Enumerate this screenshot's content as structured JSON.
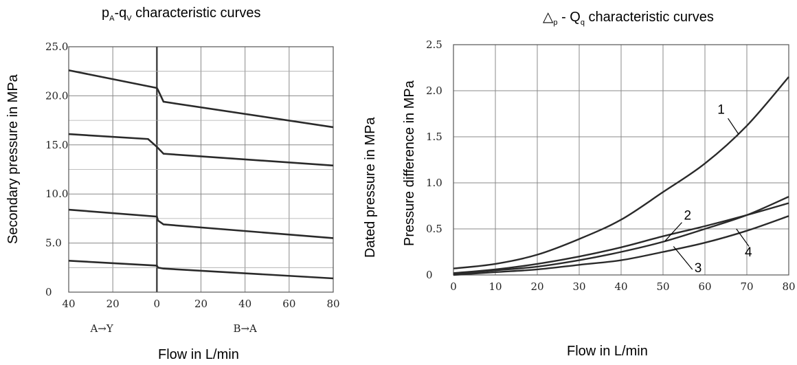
{
  "chart_data": [
    {
      "type": "line",
      "title": "pₐ-qᵥ characteristic curves",
      "title_main": "p",
      "title_sub_a": "A",
      "title_mid": "-q",
      "title_sub_b": "V",
      "title_tail": " characteristic curves",
      "xlabel": "Flow in L/min",
      "ylabel": "Secondary pressure in MPa",
      "x_ticks": [
        "40",
        "20",
        "0",
        "20",
        "40",
        "60",
        "80"
      ],
      "y_ticks": [
        "0",
        "5.0",
        "10.0",
        "15.0",
        "20.0",
        "25.0"
      ],
      "direction_labels": [
        "A→Y",
        "B→A"
      ],
      "xlim": [
        -40,
        80
      ],
      "ylim": [
        0,
        25
      ],
      "grid": true,
      "series": [
        {
          "x": [
            -40,
            0,
            0.5,
            3,
            80
          ],
          "values": [
            22.6,
            20.8,
            20.6,
            19.4,
            16.8
          ]
        },
        {
          "x": [
            -40,
            -4,
            0,
            3,
            80
          ],
          "values": [
            16.1,
            15.6,
            14.8,
            14.1,
            12.9
          ]
        },
        {
          "x": [
            -40,
            0,
            0.5,
            3,
            80
          ],
          "values": [
            8.4,
            7.7,
            7.3,
            6.9,
            5.5
          ]
        },
        {
          "x": [
            -40,
            0,
            0.5,
            3,
            80
          ],
          "values": [
            3.2,
            2.7,
            2.5,
            2.4,
            1.4
          ]
        }
      ]
    },
    {
      "type": "line",
      "title": "△ₚ - Qᵩ characteristic curves",
      "title_main": "△",
      "title_sub_a": "p",
      "title_mid": " - Q",
      "title_sub_b": "q",
      "title_tail": " characteristic curves",
      "xlabel": "Flow in L/min",
      "ylabel": "Pressure difference in MPa",
      "ylabel2": "Dated pressure  in MPa",
      "x_ticks": [
        "0",
        "10",
        "20",
        "30",
        "40",
        "50",
        "60",
        "70",
        "80"
      ],
      "y_ticks": [
        "0",
        "0.5",
        "1.0",
        "1.5",
        "2.0",
        "2.5"
      ],
      "xlim": [
        0,
        80
      ],
      "ylim": [
        0,
        2.5
      ],
      "grid": true,
      "series": [
        {
          "name": "1",
          "x": [
            0,
            10,
            20,
            30,
            40,
            50,
            60,
            70,
            80
          ],
          "values": [
            0.07,
            0.12,
            0.22,
            0.39,
            0.6,
            0.9,
            1.21,
            1.62,
            2.15
          ]
        },
        {
          "name": "2",
          "x": [
            0,
            10,
            20,
            30,
            40,
            50,
            60,
            70,
            80
          ],
          "values": [
            0.02,
            0.06,
            0.12,
            0.2,
            0.3,
            0.42,
            0.53,
            0.65,
            0.78
          ]
        },
        {
          "name": "3",
          "x": [
            0,
            10,
            20,
            30,
            40,
            50,
            60,
            70,
            80
          ],
          "values": [
            0.01,
            0.05,
            0.09,
            0.16,
            0.25,
            0.36,
            0.5,
            0.65,
            0.85
          ]
        },
        {
          "name": "4",
          "x": [
            0,
            10,
            20,
            30,
            40,
            50,
            60,
            70,
            80
          ],
          "values": [
            0.0,
            0.03,
            0.06,
            0.11,
            0.16,
            0.25,
            0.35,
            0.48,
            0.64
          ]
        }
      ]
    }
  ]
}
